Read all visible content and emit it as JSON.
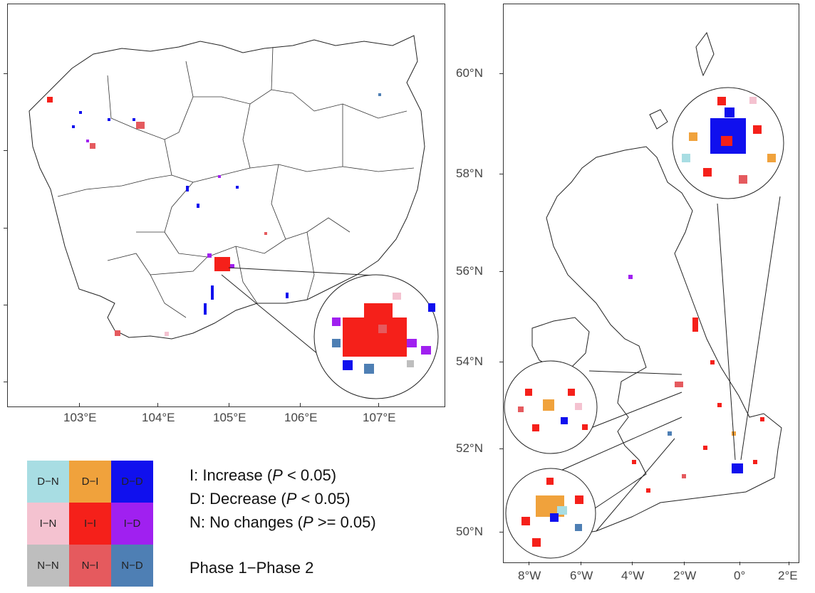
{
  "left_map": {
    "x_ticks": [
      "103°E",
      "104°E",
      "105°E",
      "106°E",
      "107°E"
    ],
    "y_ticks_count": 5
  },
  "right_map": {
    "x_ticks": [
      "8°W",
      "6°W",
      "4°W",
      "2°W",
      "0°",
      "2°E"
    ],
    "y_ticks": [
      "60°N",
      "58°N",
      "56°N",
      "54°N",
      "52°N",
      "50°N"
    ]
  },
  "legend": {
    "cells": [
      {
        "label": "D−N",
        "color": "#a8dde3"
      },
      {
        "label": "D−I",
        "color": "#f0a23c"
      },
      {
        "label": "D−D",
        "color": "#1010ee"
      },
      {
        "label": "I−N",
        "color": "#f4c2d0"
      },
      {
        "label": "I−I",
        "color": "#f5201a"
      },
      {
        "label": "I−D",
        "color": "#a020f0"
      },
      {
        "label": "N−N",
        "color": "#bebebe"
      },
      {
        "label": "N−I",
        "color": "#e55a5e"
      },
      {
        "label": "N−D",
        "color": "#4e7fb4"
      }
    ],
    "increase_prefix": "I: Increase (",
    "increase_p": "P",
    "increase_suffix": " < 0.05)",
    "decrease_prefix": "D: Decrease (",
    "decrease_p": "P",
    "decrease_suffix": " < 0.05)",
    "nochange_prefix": "N: No changes  (",
    "nochange_p": "P",
    "nochange_suffix": " >= 0.05)",
    "phase_label": "Phase 1−Phase 2"
  },
  "colors": {
    "D_D": "#1010ee",
    "I_I": "#f5201a",
    "I_D": "#a020f0",
    "D_I": "#f0a23c",
    "N_I": "#e55a5e",
    "N_D": "#4e7fb4",
    "D_N": "#a8dde3",
    "I_N": "#f4c2d0"
  }
}
